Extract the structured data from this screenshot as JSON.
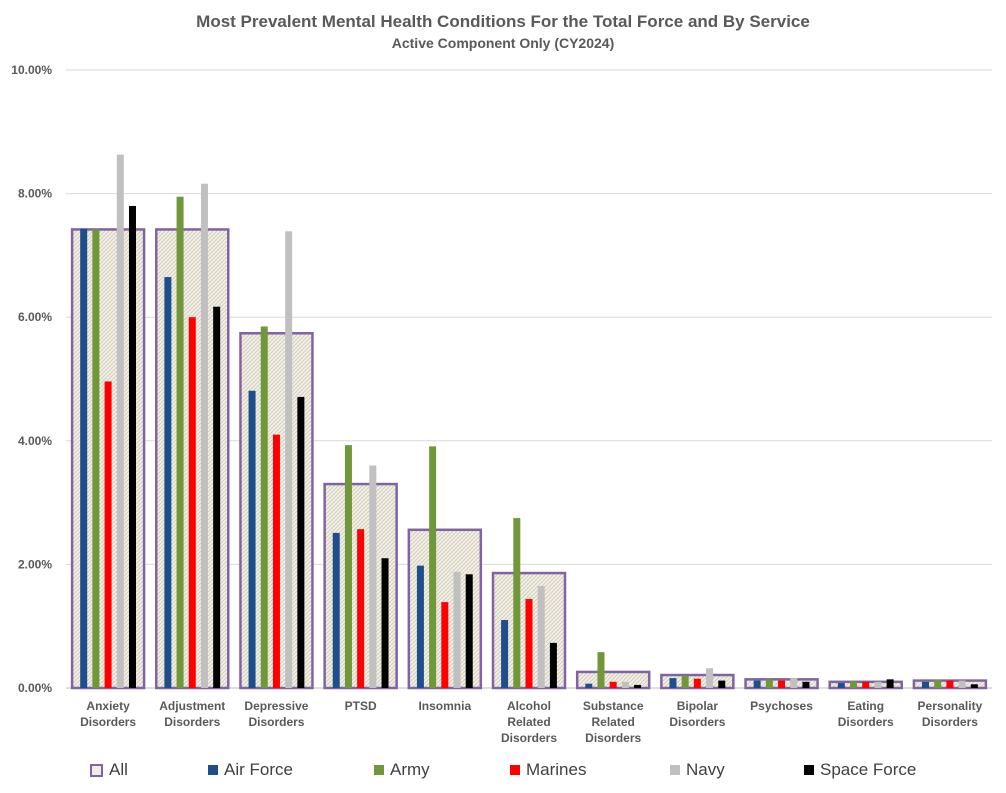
{
  "chart_data": {
    "type": "bar",
    "title": "Most Prevalent Mental Health Conditions For the Total Force and By Service",
    "subtitle": "Active Component Only (CY2024)",
    "xlabel": "",
    "ylabel": "",
    "ylim": [
      0,
      10
    ],
    "y_ticks": [
      "0.00%",
      "2.00%",
      "4.00%",
      "6.00%",
      "8.00%",
      "10.00%"
    ],
    "grid": true,
    "legend_position": "bottom",
    "categories": [
      "Anxiety Disorders",
      "Adjustment Disorders",
      "Depressive Disorders",
      "PTSD",
      "Insomnia",
      "Alcohol Related Disorders",
      "Substance Related Disorders",
      "Bipolar Disorders",
      "Psychoses",
      "Eating Disorders",
      "Personality Disorders"
    ],
    "category_label_lines": [
      [
        "Anxiety",
        "Disorders"
      ],
      [
        "Adjustment",
        "Disorders"
      ],
      [
        "Depressive",
        "Disorders"
      ],
      [
        "PTSD"
      ],
      [
        "Insomnia"
      ],
      [
        "Alcohol",
        "Related",
        "Disorders"
      ],
      [
        "Substance",
        "Related",
        "Disorders"
      ],
      [
        "Bipolar",
        "Disorders"
      ],
      [
        "Psychoses"
      ],
      [
        "Eating",
        "Disorders"
      ],
      [
        "Personality",
        "Disorders"
      ]
    ],
    "total": {
      "name": "All",
      "color": "#8064a2",
      "values": [
        7.42,
        7.42,
        5.74,
        3.3,
        2.56,
        1.86,
        0.26,
        0.21,
        0.14,
        0.1,
        0.12
      ]
    },
    "series": [
      {
        "name": "Air Force",
        "color": "#1f4e8c",
        "values": [
          7.43,
          6.65,
          4.81,
          2.51,
          1.98,
          1.1,
          0.07,
          0.16,
          0.12,
          0.08,
          0.1
        ]
      },
      {
        "name": "Army",
        "color": "#70973a",
        "values": [
          7.42,
          7.95,
          5.85,
          3.93,
          3.91,
          2.75,
          0.58,
          0.2,
          0.14,
          0.11,
          0.13
        ]
      },
      {
        "name": "Marines",
        "color": "#ff0000",
        "values": [
          4.96,
          6.0,
          4.1,
          2.57,
          1.39,
          1.44,
          0.1,
          0.15,
          0.12,
          0.1,
          0.12
        ]
      },
      {
        "name": "Navy",
        "color": "#c0c0c0",
        "values": [
          8.63,
          8.16,
          7.39,
          3.6,
          1.88,
          1.65,
          0.1,
          0.32,
          0.16,
          0.1,
          0.12
        ]
      },
      {
        "name": "Space Force",
        "color": "#000000",
        "values": [
          7.8,
          6.17,
          4.71,
          2.1,
          1.84,
          0.73,
          0.05,
          0.12,
          0.1,
          0.14,
          0.06
        ]
      }
    ]
  }
}
